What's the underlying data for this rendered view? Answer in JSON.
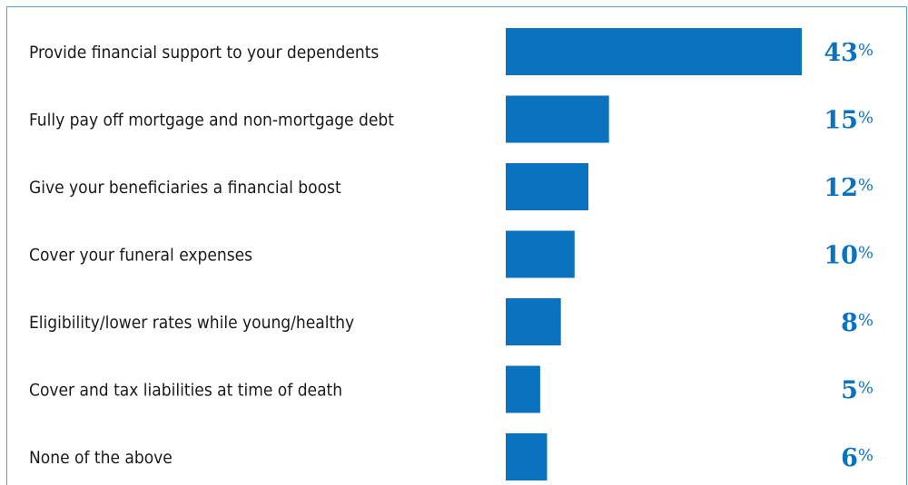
{
  "chart_data": {
    "type": "bar",
    "orientation": "horizontal",
    "title": "",
    "xlabel": "",
    "ylabel": "",
    "categories": [
      "Provide financial support to your dependents",
      "Fully pay off mortgage and non-mortgage debt",
      "Give your beneficiaries a financial boost",
      "Cover your funeral expenses",
      "Eligibility/lower rates while young/healthy",
      "Cover and tax liabilities at time of death",
      "None of the above"
    ],
    "values": [
      43,
      15,
      12,
      10,
      8,
      5,
      6
    ],
    "value_labels": [
      "43",
      "15",
      "12",
      "10",
      "8",
      "5",
      "6"
    ],
    "value_suffix": "%",
    "xlim": [
      0,
      43
    ],
    "grid": false,
    "legend": "none",
    "bar_color": "#0a72bf",
    "label_color": "#0a72bf",
    "frame_color": "#5a9ad6"
  }
}
